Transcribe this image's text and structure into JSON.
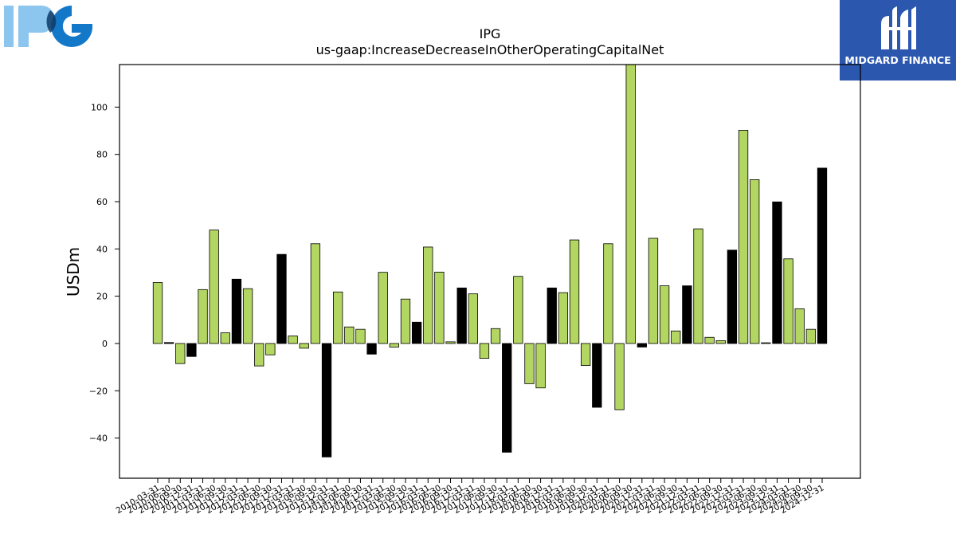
{
  "header": {
    "company_logo": "IPG",
    "company_logo_icon": "ipg-logo-icon",
    "brand_name": "MIDGARD FINANCE",
    "brand_logo_icon": "midgard-logo-icon"
  },
  "colors": {
    "bar_q": "#b3d662",
    "bar_q4": "#000000",
    "ipg_light": "#8cc6ee",
    "ipg_dark": "#1478c8",
    "midgard_bg": "#2b57ae"
  },
  "chart_data": {
    "type": "bar",
    "title": "IPG",
    "subtitle": "us-gaap:IncreaseDecreaseInOtherOperatingCapitalNet",
    "xlabel": "",
    "ylabel": "USDm",
    "ylim": [
      -57,
      118
    ],
    "yticks": [
      -40,
      -20,
      0,
      20,
      40,
      60,
      80,
      100
    ],
    "grid": false,
    "categories": [
      "2010-03-31",
      "2010-06-30",
      "2010-09-30",
      "2010-12-31",
      "2011-03-31",
      "2011-06-30",
      "2011-09-30",
      "2011-12-31",
      "2012-03-31",
      "2012-06-30",
      "2012-09-30",
      "2012-12-31",
      "2013-03-31",
      "2013-06-30",
      "2013-09-30",
      "2013-12-31",
      "2014-03-31",
      "2014-06-30",
      "2014-09-30",
      "2014-12-31",
      "2015-03-31",
      "2015-06-30",
      "2015-09-30",
      "2015-12-31",
      "2016-03-31",
      "2016-06-30",
      "2016-09-30",
      "2016-12-31",
      "2017-03-31",
      "2017-06-30",
      "2017-09-30",
      "2017-12-31",
      "2018-03-31",
      "2018-06-30",
      "2018-09-30",
      "2018-12-31",
      "2019-03-31",
      "2019-06-30",
      "2019-09-30",
      "2019-12-31",
      "2020-03-31",
      "2020-06-30",
      "2020-09-30",
      "2020-12-31",
      "2021-03-31",
      "2021-06-30",
      "2021-09-30",
      "2021-12-31",
      "2022-03-31",
      "2022-06-30",
      "2022-09-30",
      "2022-12-31",
      "2023-03-31",
      "2023-06-30",
      "2023-09-30",
      "2023-12-31",
      "2024-03-31",
      "2024-06-30",
      "2024-09-30",
      "2024-12-31"
    ],
    "values": [
      25.8,
      0.4,
      -8.5,
      -5.5,
      22.8,
      48.0,
      4.5,
      27.2,
      23.2,
      -9.5,
      -4.8,
      37.7,
      3.2,
      -2.0,
      42.2,
      -48.0,
      21.8,
      7.0,
      6.0,
      -4.5,
      30.1,
      -1.5,
      18.8,
      9.0,
      40.8,
      30.2,
      0.7,
      23.5,
      21.0,
      -6.3,
      6.3,
      -46.0,
      28.4,
      -17.0,
      -18.8,
      23.5,
      21.5,
      43.8,
      -9.3,
      -27.0,
      42.2,
      -28.0,
      118.0,
      -1.5,
      44.5,
      24.4,
      5.3,
      24.4,
      48.5,
      2.6,
      1.2,
      39.5,
      90.2,
      69.3,
      0.3,
      59.9,
      35.8,
      14.7,
      6.0,
      74.2
    ],
    "colors": [
      "q",
      "q4",
      "q",
      "q4",
      "q",
      "q",
      "q",
      "q4",
      "q",
      "q",
      "q",
      "q4",
      "q",
      "q",
      "q",
      "q4",
      "q",
      "q",
      "q",
      "q4",
      "q",
      "q",
      "q",
      "q4",
      "q",
      "q",
      "q",
      "q4",
      "q",
      "q",
      "q",
      "q4",
      "q",
      "q",
      "q",
      "q4",
      "q",
      "q",
      "q",
      "q4",
      "q",
      "q",
      "q",
      "q4",
      "q",
      "q",
      "q",
      "q4",
      "q",
      "q",
      "q",
      "q4",
      "q",
      "q",
      "q",
      "q4",
      "q",
      "q",
      "q",
      "q4"
    ]
  }
}
